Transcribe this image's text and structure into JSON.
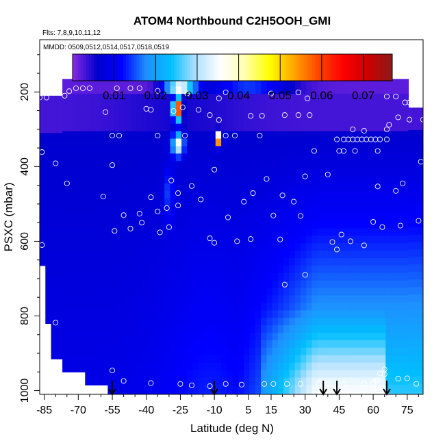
{
  "chart_data": {
    "type": "heatmap",
    "title": "ATOM4 Northbound C2H5OOH_GMI",
    "flights_note": "Flts: 7,8,9,10,11,12",
    "dates_note": "MMDD: 0509,0512,0514,0517,0518,0519",
    "xlabel": "Latitude (deg N)",
    "ylabel": "PSXC (mbar)",
    "xlim": [
      -87,
      82
    ],
    "ylim": [
      1010,
      60
    ],
    "x_ticks": [
      "-85",
      "-70",
      "-55",
      "-40",
      "-25",
      "-10",
      "5",
      "15",
      "30",
      "45",
      "60",
      "75"
    ],
    "y_ticks": [
      "200",
      "400",
      "600",
      "800",
      "1000"
    ],
    "colorbar": {
      "range": [
        0.0,
        0.077
      ],
      "ticks": [
        "0.01",
        "0.02",
        "0.03",
        "0.04",
        "0.05",
        "0.06",
        "0.07"
      ],
      "colors": [
        "#8a2be2",
        "#0000cd",
        "#0000ff",
        "#1e90ff",
        "#00bfff",
        "#b0e0ff",
        "#ffffff",
        "#ffffb0",
        "#ffff00",
        "#ffa500",
        "#ff4500",
        "#ff0000",
        "#cc0000",
        "#8b1a1a"
      ]
    },
    "arrows_lat": [
      -55,
      -10,
      38,
      44,
      66
    ],
    "sample_points": [
      [
        -87,
        215
      ],
      [
        -84,
        215
      ],
      [
        -76,
        210
      ],
      [
        -74,
        198
      ],
      [
        -71,
        190
      ],
      [
        -68,
        190
      ],
      [
        -65,
        190
      ],
      [
        -53,
        190
      ],
      [
        -47,
        190
      ],
      [
        -43,
        190
      ],
      [
        -35,
        197
      ],
      [
        -22,
        204
      ],
      [
        -8,
        217
      ],
      [
        -5,
        201
      ],
      [
        15,
        204
      ],
      [
        27,
        201
      ],
      [
        31,
        217
      ],
      [
        66,
        212
      ],
      [
        70,
        212
      ],
      [
        74,
        228
      ],
      [
        76,
        228
      ],
      [
        -58,
        254
      ],
      [
        -40,
        245
      ],
      [
        -38,
        248
      ],
      [
        -28,
        251
      ],
      [
        -24,
        241
      ],
      [
        -17,
        248
      ],
      [
        -12,
        262
      ],
      [
        -8,
        275
      ],
      [
        6,
        264
      ],
      [
        11,
        264
      ],
      [
        21,
        262
      ],
      [
        27,
        262
      ],
      [
        32,
        262
      ],
      [
        71,
        268
      ],
      [
        76,
        274
      ],
      [
        82,
        274
      ],
      [
        67,
        288
      ],
      [
        66,
        300
      ],
      [
        51,
        300
      ],
      [
        56,
        304
      ],
      [
        -55,
        317
      ],
      [
        -52,
        317
      ],
      [
        -35,
        317
      ],
      [
        -23,
        317
      ],
      [
        -5,
        317
      ],
      [
        -1,
        317
      ],
      [
        10,
        317
      ],
      [
        44,
        327
      ],
      [
        47,
        327
      ],
      [
        49,
        327
      ],
      [
        51,
        327
      ],
      [
        53,
        327
      ],
      [
        55,
        327
      ],
      [
        57,
        327
      ],
      [
        59,
        327
      ],
      [
        61,
        327
      ],
      [
        63,
        327
      ],
      [
        66,
        327
      ],
      [
        81,
        387
      ],
      [
        34,
        358
      ],
      [
        45,
        358
      ],
      [
        47,
        358
      ],
      [
        52,
        358
      ],
      [
        62,
        358
      ],
      [
        -86,
        361
      ],
      [
        -80,
        391
      ],
      [
        -55,
        396
      ],
      [
        -10,
        408
      ],
      [
        -29,
        437
      ],
      [
        13,
        433
      ],
      [
        30,
        426
      ],
      [
        -75,
        445
      ],
      [
        -20,
        452
      ],
      [
        -26,
        471
      ],
      [
        7,
        471
      ],
      [
        20,
        477
      ],
      [
        73,
        445
      ],
      [
        -59,
        480
      ],
      [
        -38,
        482
      ],
      [
        -16,
        488
      ],
      [
        3,
        494
      ],
      [
        25,
        494
      ],
      [
        70,
        465
      ],
      [
        62,
        453
      ],
      [
        40,
        421
      ],
      [
        -50,
        530
      ],
      [
        -43,
        526
      ],
      [
        -35,
        520
      ],
      [
        -31,
        511
      ],
      [
        -26,
        504
      ],
      [
        -4,
        536
      ],
      [
        -30,
        562
      ],
      [
        -42,
        550
      ],
      [
        -54,
        572
      ],
      [
        -47,
        566
      ],
      [
        -34,
        576
      ],
      [
        16,
        531
      ],
      [
        28,
        532
      ],
      [
        46,
        582
      ],
      [
        42,
        602
      ],
      [
        50,
        600
      ],
      [
        60,
        548
      ],
      [
        64,
        562
      ],
      [
        72,
        558
      ],
      [
        80,
        545
      ],
      [
        -86,
        610
      ],
      [
        -12,
        592
      ],
      [
        -10,
        604
      ],
      [
        0,
        600
      ],
      [
        6,
        594
      ],
      [
        19,
        595
      ],
      [
        44,
        622
      ],
      [
        56,
        611
      ],
      [
        30,
        690
      ],
      [
        21,
        716
      ],
      [
        -80,
        818
      ],
      [
        -55,
        946
      ],
      [
        -50,
        974
      ],
      [
        -38,
        980
      ],
      [
        -25,
        982
      ],
      [
        -20,
        986
      ],
      [
        -12,
        988
      ],
      [
        -5,
        982
      ],
      [
        2,
        984
      ],
      [
        12,
        982
      ],
      [
        16,
        982
      ],
      [
        22,
        982
      ],
      [
        28,
        982
      ],
      [
        36,
        981
      ],
      [
        40,
        982
      ],
      [
        47,
        982
      ],
      [
        56,
        982
      ],
      [
        60,
        980
      ],
      [
        62,
        972
      ],
      [
        63,
        954
      ],
      [
        65,
        943
      ],
      [
        65,
        956
      ],
      [
        61,
        973
      ],
      [
        71,
        968
      ],
      [
        75,
        967
      ],
      [
        79,
        982
      ],
      [
        60,
        993
      ]
    ]
  }
}
